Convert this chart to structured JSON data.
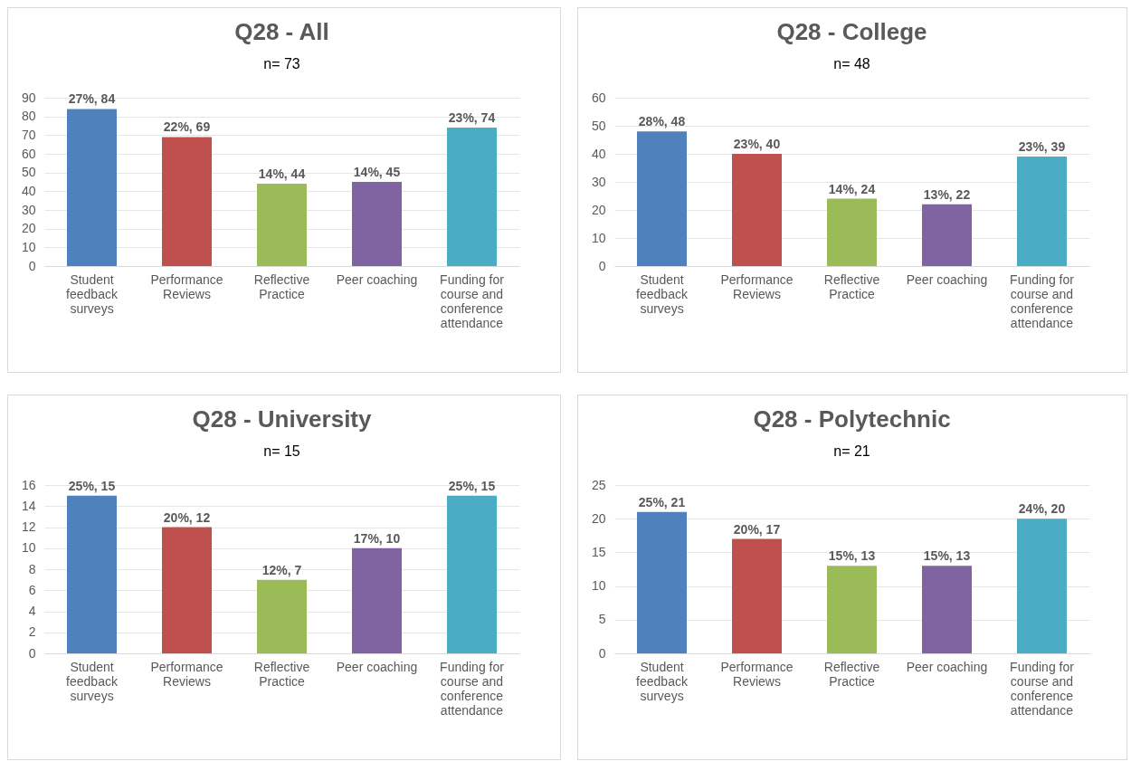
{
  "chart_data": [
    {
      "type": "bar",
      "title": "Q28 - All",
      "subtitle": "n= 73",
      "categories": [
        "Student feedback surveys",
        "Performance Reviews",
        "Reflective Practice",
        "Peer coaching",
        "Funding for course and conference attendance"
      ],
      "values": [
        84,
        69,
        44,
        45,
        74
      ],
      "value_labels": [
        "27%, 84",
        "22%, 69",
        "14%, 44",
        "14%, 45",
        "23%, 74"
      ],
      "colors": [
        "#4f81bd",
        "#c0504d",
        "#9bbb59",
        "#8064a2",
        "#4bacc6"
      ],
      "ylim": [
        0,
        90
      ],
      "yticks": [
        0,
        10,
        20,
        30,
        40,
        50,
        60,
        70,
        80,
        90
      ],
      "grid": "y"
    },
    {
      "type": "bar",
      "title": "Q28 - College",
      "subtitle": "n= 48",
      "categories": [
        "Student feedback surveys",
        "Performance Reviews",
        "Reflective Practice",
        "Peer coaching",
        "Funding for course and conference attendance"
      ],
      "values": [
        48,
        40,
        24,
        22,
        39
      ],
      "value_labels": [
        "28%, 48",
        "23%, 40",
        "14%, 24",
        "13%, 22",
        "23%, 39"
      ],
      "colors": [
        "#4f81bd",
        "#c0504d",
        "#9bbb59",
        "#8064a2",
        "#4bacc6"
      ],
      "ylim": [
        0,
        60
      ],
      "yticks": [
        0,
        10,
        20,
        30,
        40,
        50,
        60
      ],
      "grid": "y"
    },
    {
      "type": "bar",
      "title": "Q28 - University",
      "subtitle": "n= 15",
      "categories": [
        "Student feedback surveys",
        "Performance Reviews",
        "Reflective Practice",
        "Peer coaching",
        "Funding for course and conference attendance"
      ],
      "values": [
        15,
        12,
        7,
        10,
        15
      ],
      "value_labels": [
        "25%, 15",
        "20%, 12",
        "12%, 7",
        "17%, 10",
        "25%, 15"
      ],
      "colors": [
        "#4f81bd",
        "#c0504d",
        "#9bbb59",
        "#8064a2",
        "#4bacc6"
      ],
      "ylim": [
        0,
        16
      ],
      "yticks": [
        0,
        2,
        4,
        6,
        8,
        10,
        12,
        14,
        16
      ],
      "grid": "y"
    },
    {
      "type": "bar",
      "title": "Q28 - Polytechnic",
      "subtitle": "n= 21",
      "categories": [
        "Student feedback surveys",
        "Performance Reviews",
        "Reflective Practice",
        "Peer coaching",
        "Funding for course and conference attendance"
      ],
      "values": [
        21,
        17,
        13,
        13,
        20
      ],
      "value_labels": [
        "25%, 21",
        "20%, 17",
        "15%, 13",
        "15%, 13",
        "24%, 20"
      ],
      "colors": [
        "#4f81bd",
        "#c0504d",
        "#9bbb59",
        "#8064a2",
        "#4bacc6"
      ],
      "ylim": [
        0,
        25
      ],
      "yticks": [
        0,
        5,
        10,
        15,
        20,
        25
      ],
      "grid": "y"
    }
  ]
}
